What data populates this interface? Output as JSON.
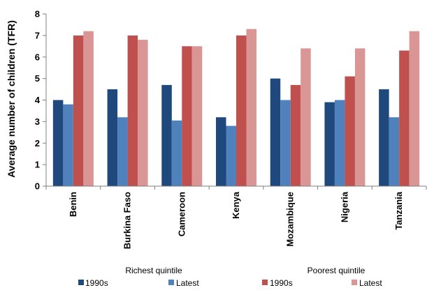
{
  "chart_data": {
    "type": "bar",
    "title": "",
    "xlabel": "",
    "ylabel": "Average number of children (TFR)",
    "ylim": [
      0,
      8
    ],
    "yticks": [
      0,
      1,
      2,
      3,
      4,
      5,
      6,
      7,
      8
    ],
    "grid": false,
    "categories": [
      "Benin",
      "Burkina Faso",
      "Cameroon",
      "Kenya",
      "Mozambique",
      "Nigeria",
      "Tanzania"
    ],
    "series": [
      {
        "name": "1990s",
        "group": "Richest quintile",
        "color": "#1f497d",
        "values": [
          4.0,
          4.5,
          4.7,
          3.2,
          5.0,
          3.9,
          4.5
        ]
      },
      {
        "name": "Latest",
        "group": "Richest quintile",
        "color": "#4f81bd",
        "values": [
          3.8,
          3.2,
          3.05,
          2.8,
          4.0,
          4.0,
          3.2
        ]
      },
      {
        "name": "1990s",
        "group": "Poorest quintile",
        "color": "#c0504d",
        "values": [
          7.0,
          7.0,
          6.5,
          7.0,
          4.7,
          5.1,
          6.3
        ]
      },
      {
        "name": "Latest",
        "group": "Poorest quintile",
        "color": "#d99694",
        "values": [
          7.2,
          6.8,
          6.5,
          7.3,
          6.4,
          6.4,
          7.2
        ]
      }
    ],
    "legend": {
      "placement": "bottom",
      "groups": [
        {
          "title": "Richest quintile",
          "items": [
            "1990s",
            "Latest"
          ]
        },
        {
          "title": "Poorest quintile",
          "items": [
            "1990s",
            "Latest"
          ]
        }
      ]
    },
    "colors": {
      "axis": "#7f7f7f",
      "tick_text": "#000000"
    }
  }
}
